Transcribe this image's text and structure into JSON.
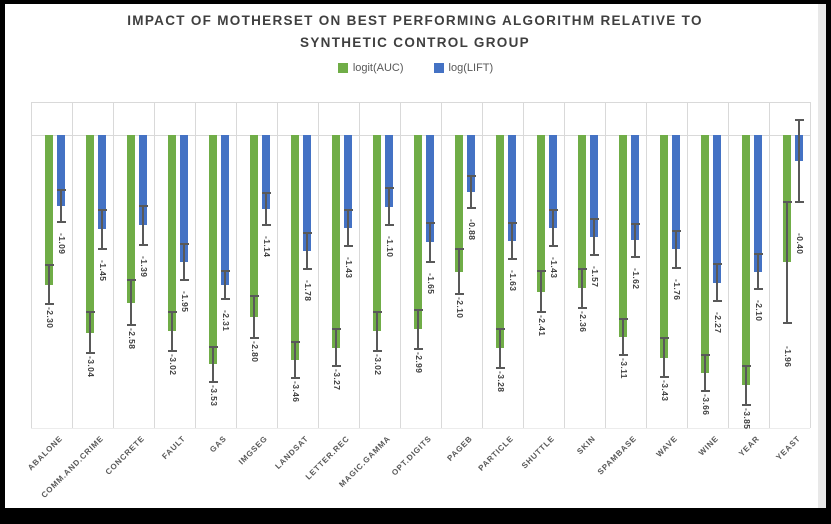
{
  "title": "IMPACT OF MOTHERSET ON BEST PERFORMING ALGORITHM RELATIVE TO SYNTHETIC CONTROL GROUP",
  "legend": {
    "items": [
      {
        "label": "logit(AUC)",
        "color": "#70AD47"
      },
      {
        "label": "log(LIFT)",
        "color": "#4472C4"
      }
    ],
    "position": "top"
  },
  "colors": {
    "series_green": "#70AD47",
    "series_blue": "#4472C4",
    "error_bar": "#595959",
    "gridline": "#d9d9d9",
    "title_text": "#3f3f3f",
    "axis_text": "#595959"
  },
  "chart_data": {
    "type": "bar",
    "title": "IMPACT OF MOTHERSET ON BEST PERFORMING ALGORITHM RELATIVE TO SYNTHETIC CONTROL GROUP",
    "xlabel": "",
    "ylabel": "",
    "ylim": [
      -4.5,
      0.5
    ],
    "grid": "vertical category separators, zero line, top border",
    "legend_position": "top-center",
    "data_labels": "outside end, rotated vertical, 2 decimals",
    "error_bars": true,
    "categories": [
      "ABALONE",
      "COMM.AND.CRIME",
      "CONCRETE",
      "FAULT",
      "GAS",
      "IMGSEG",
      "LANDSAT",
      "LETTER.REC",
      "MAGIC.GAMMA",
      "OPT.DIGITS",
      "PAGEB",
      "PARTICLE",
      "SHUTTLE",
      "SKIN",
      "SPAMBASE",
      "WAVE",
      "WINE",
      "YEAR",
      "YEAST"
    ],
    "series": [
      {
        "name": "logit(AUC)",
        "color": "#70AD47",
        "values": [
          -2.3,
          -3.04,
          -2.58,
          -3.02,
          -3.53,
          -2.8,
          -3.46,
          -3.27,
          -3.02,
          -2.99,
          -2.1,
          -3.28,
          -2.41,
          -2.36,
          -3.11,
          -3.43,
          -3.66,
          -3.85,
          -1.96
        ],
        "errors": [
          0.3,
          0.32,
          0.35,
          0.3,
          0.27,
          0.33,
          0.28,
          0.28,
          0.3,
          0.3,
          0.35,
          0.3,
          0.32,
          0.3,
          0.28,
          0.3,
          0.28,
          0.3,
          0.93
        ]
      },
      {
        "name": "log(LIFT)",
        "color": "#4472C4",
        "values": [
          -1.09,
          -1.45,
          -1.39,
          -1.95,
          -2.31,
          -1.14,
          -1.78,
          -1.43,
          -1.1,
          -1.65,
          -0.88,
          -1.63,
          -1.43,
          -1.57,
          -1.62,
          -1.76,
          -2.27,
          -2.1,
          -0.4
        ],
        "errors": [
          0.25,
          0.3,
          0.3,
          0.28,
          0.22,
          0.25,
          0.28,
          0.28,
          0.28,
          0.3,
          0.25,
          0.28,
          0.28,
          0.28,
          0.25,
          0.28,
          0.28,
          0.27,
          0.63
        ]
      }
    ]
  }
}
